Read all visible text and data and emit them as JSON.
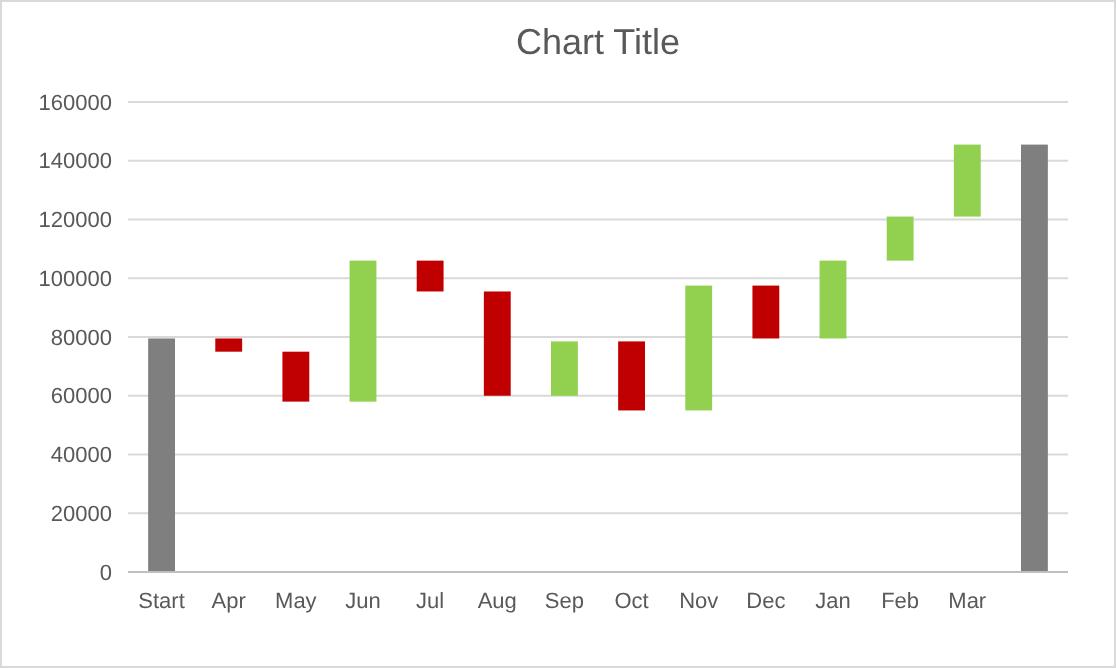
{
  "chart_data": {
    "type": "bar",
    "title": "Chart Title",
    "categories": [
      "Start",
      "Apr",
      "May",
      "Jun",
      "Jul",
      "Aug",
      "Sep",
      "Oct",
      "Nov",
      "Dec",
      "Jan",
      "Feb",
      "Mar",
      null
    ],
    "values": [
      79500,
      4500,
      17000,
      48000,
      10500,
      35500,
      18500,
      23500,
      42500,
      18000,
      26500,
      15000,
      24500,
      145500
    ],
    "base": [
      0,
      75000,
      58000,
      58000,
      95500,
      60000,
      60000,
      55000,
      55000,
      79500,
      79500,
      106000,
      121000,
      0
    ],
    "colors": [
      "#7f7f7f",
      "#c00000",
      "#c00000",
      "#92d050",
      "#c00000",
      "#c00000",
      "#92d050",
      "#c00000",
      "#92d050",
      "#c00000",
      "#92d050",
      "#92d050",
      "#92d050",
      "#7f7f7f"
    ],
    "ylim": [
      0,
      160000
    ],
    "yticks": [
      0,
      20000,
      40000,
      60000,
      80000,
      100000,
      120000,
      140000,
      160000
    ],
    "grid": "y"
  }
}
